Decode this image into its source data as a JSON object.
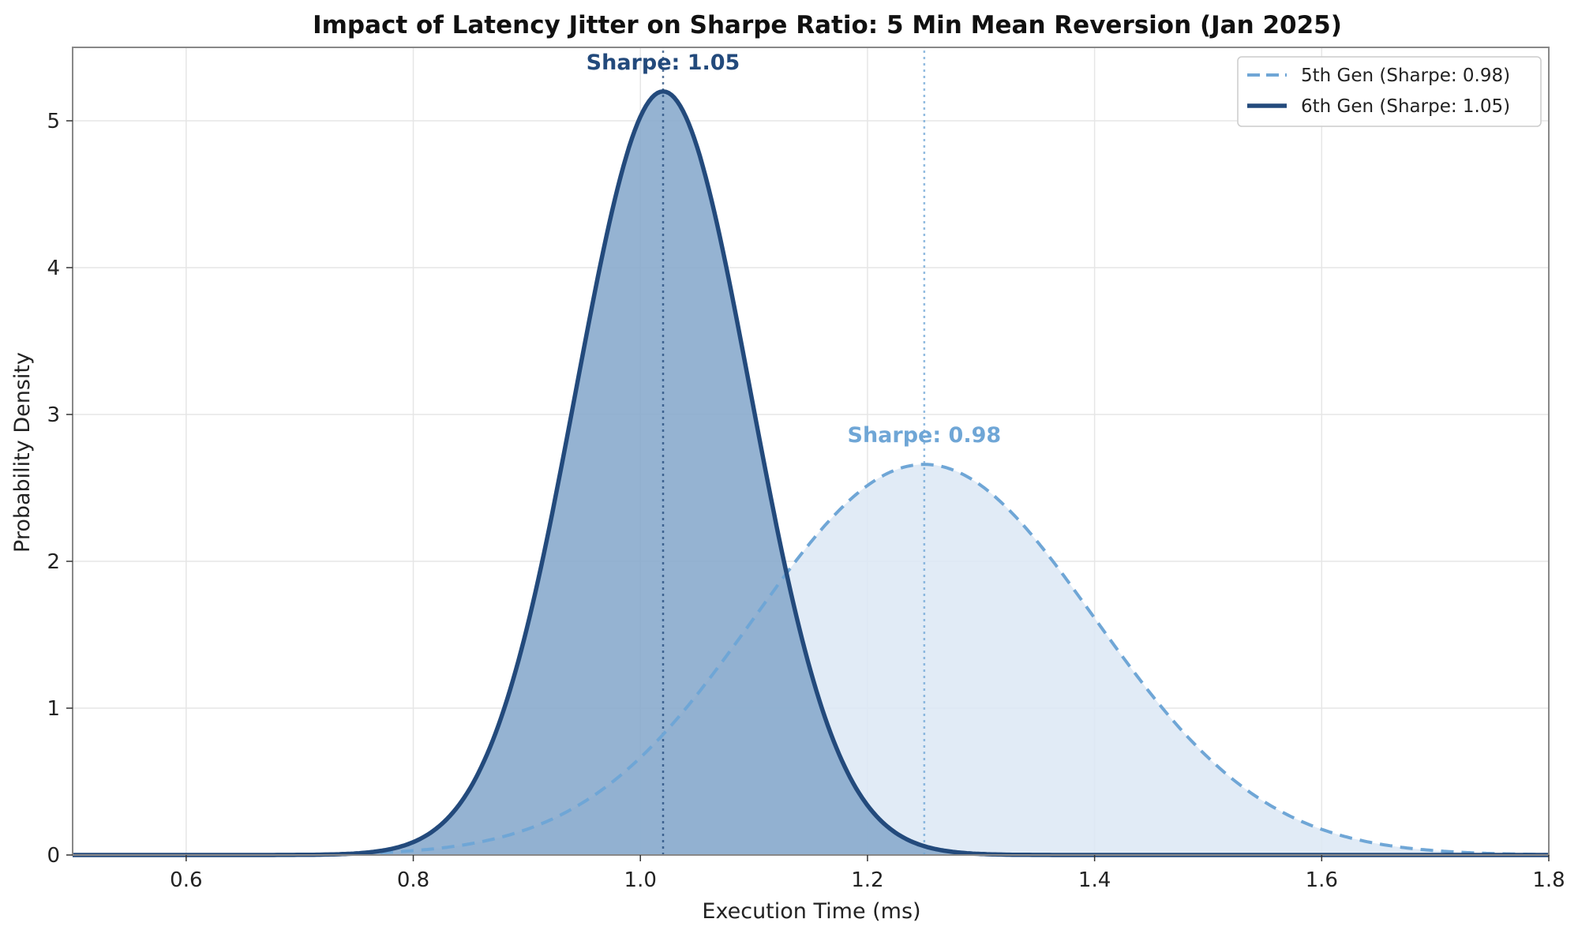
{
  "chart_data": {
    "type": "area",
    "title": "Impact of Latency Jitter on Sharpe Ratio: 5 Min Mean Reversion (Jan 2025)",
    "xlabel": "Execution Time (ms)",
    "ylabel": "Probability Density",
    "xlim": [
      0.5,
      1.8
    ],
    "ylim": [
      0,
      5.5
    ],
    "xticks": [
      0.6,
      0.8,
      1.0,
      1.2,
      1.4,
      1.6,
      1.8
    ],
    "xtick_labels": [
      "0.6",
      "0.8",
      "1.0",
      "1.2",
      "1.4",
      "1.6",
      "1.8"
    ],
    "yticks": [
      0,
      1,
      2,
      3,
      4,
      5
    ],
    "ytick_labels": [
      "0",
      "1",
      "2",
      "3",
      "4",
      "5"
    ],
    "grid": true,
    "legend_position": "top-right",
    "series": [
      {
        "name": "5th Gen (Sharpe: 0.98)",
        "distribution": "normal",
        "mean": 1.25,
        "std": 0.15,
        "peak": 2.66,
        "color": "#6fa6d6",
        "fill_color": "#dce8f4",
        "line_style": "dashed",
        "annotation": "Sharpe: 0.98"
      },
      {
        "name": "6th Gen (Sharpe: 1.05)",
        "distribution": "normal",
        "mean": 1.02,
        "std": 0.077,
        "peak": 5.2,
        "color": "#234a7c",
        "fill_color": "#86a9cc",
        "line_style": "solid",
        "annotation": "Sharpe: 1.05"
      }
    ]
  }
}
